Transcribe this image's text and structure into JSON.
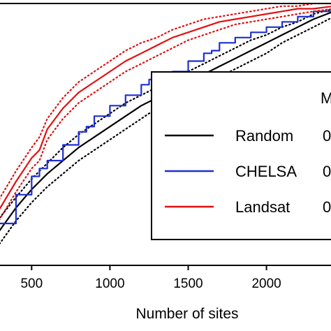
{
  "chart_data": {
    "type": "line",
    "xlabel": "Number of sites",
    "ylabel": "",
    "xlim": [
      280,
      2430
    ],
    "ylim": [
      0,
      1
    ],
    "x_ticks": [
      "500",
      "1000",
      "1500",
      "2000"
    ],
    "x_tick_values": [
      500,
      1000,
      1500,
      2000
    ],
    "legend": {
      "placement": "right",
      "title": "M",
      "value_prefix": "0"
    },
    "series": [
      {
        "name": "Random",
        "color": "#000000",
        "style": "solid",
        "x": [
          280,
          400,
          500,
          600,
          700,
          800,
          900,
          1000,
          1100,
          1200,
          1300,
          1400,
          1500,
          1600,
          1700,
          1800,
          1900,
          2000,
          2100,
          2200,
          2300,
          2430
        ],
        "values": [
          0.12,
          0.22,
          0.29,
          0.35,
          0.4,
          0.45,
          0.49,
          0.53,
          0.57,
          0.61,
          0.64,
          0.67,
          0.7,
          0.73,
          0.76,
          0.79,
          0.82,
          0.85,
          0.88,
          0.91,
          0.94,
          0.97
        ]
      },
      {
        "name": "Random upper",
        "color": "#000000",
        "style": "dotted",
        "x": [
          280,
          400,
          500,
          600,
          700,
          800,
          900,
          1000,
          1100,
          1200,
          1300,
          1400,
          1500,
          1600,
          1700,
          1800,
          1900,
          2000,
          2100,
          2200,
          2300,
          2430
        ],
        "values": [
          0.17,
          0.26,
          0.33,
          0.39,
          0.45,
          0.5,
          0.54,
          0.58,
          0.62,
          0.65,
          0.68,
          0.71,
          0.74,
          0.77,
          0.8,
          0.83,
          0.86,
          0.88,
          0.91,
          0.93,
          0.96,
          0.98
        ]
      },
      {
        "name": "Random lower",
        "color": "#000000",
        "style": "dotted",
        "x": [
          280,
          400,
          500,
          600,
          700,
          800,
          900,
          1000,
          1100,
          1200,
          1300,
          1400,
          1500,
          1600,
          1700,
          1800,
          1900,
          2000,
          2100,
          2200,
          2300,
          2430
        ],
        "values": [
          0.07,
          0.17,
          0.24,
          0.3,
          0.35,
          0.4,
          0.44,
          0.48,
          0.52,
          0.56,
          0.6,
          0.63,
          0.66,
          0.69,
          0.72,
          0.75,
          0.78,
          0.81,
          0.85,
          0.88,
          0.91,
          0.95
        ]
      },
      {
        "name": "CHELSA",
        "color": "#1f2fd0",
        "style": "solid",
        "x": [
          280,
          400,
          500,
          550,
          600,
          700,
          800,
          850,
          900,
          1000,
          1100,
          1200,
          1250,
          1300,
          1400,
          1500,
          1600,
          1650,
          1700,
          1800,
          1900,
          2000,
          2100,
          2200,
          2300,
          2430
        ],
        "values": [
          0.16,
          0.27,
          0.34,
          0.37,
          0.4,
          0.46,
          0.51,
          0.53,
          0.57,
          0.61,
          0.65,
          0.69,
          0.71,
          0.72,
          0.74,
          0.78,
          0.81,
          0.82,
          0.85,
          0.87,
          0.89,
          0.91,
          0.93,
          0.95,
          0.97,
          0.98
        ]
      },
      {
        "name": "Landsat",
        "color": "#e01010",
        "style": "solid",
        "x": [
          280,
          400,
          500,
          550,
          600,
          700,
          800,
          900,
          1000,
          1100,
          1200,
          1300,
          1400,
          1500,
          1600,
          1700,
          1800,
          1900,
          2000,
          2100,
          2200,
          2300,
          2430
        ],
        "values": [
          0.2,
          0.32,
          0.41,
          0.44,
          0.52,
          0.6,
          0.66,
          0.7,
          0.74,
          0.78,
          0.81,
          0.84,
          0.87,
          0.89,
          0.91,
          0.93,
          0.94,
          0.95,
          0.96,
          0.97,
          0.98,
          0.98,
          0.99
        ]
      },
      {
        "name": "Landsat upper",
        "color": "#e01010",
        "style": "dotted",
        "x": [
          280,
          400,
          500,
          550,
          600,
          700,
          800,
          900,
          1000,
          1100,
          1200,
          1300,
          1400,
          1500,
          1600,
          1700,
          1800,
          1900,
          2000,
          2100,
          2200,
          2300,
          2430
        ],
        "values": [
          0.24,
          0.36,
          0.45,
          0.49,
          0.56,
          0.64,
          0.7,
          0.74,
          0.78,
          0.82,
          0.85,
          0.87,
          0.9,
          0.92,
          0.94,
          0.95,
          0.96,
          0.97,
          0.98,
          0.99,
          0.99,
          1.0,
          1.0
        ]
      },
      {
        "name": "Landsat lower",
        "color": "#e01010",
        "style": "dotted",
        "x": [
          280,
          400,
          500,
          550,
          600,
          700,
          800,
          900,
          1000,
          1100,
          1200,
          1300,
          1400,
          1500,
          1600,
          1700,
          1800,
          1900,
          2000,
          2100,
          2200,
          2300,
          2430
        ],
        "values": [
          0.16,
          0.28,
          0.37,
          0.4,
          0.48,
          0.56,
          0.62,
          0.66,
          0.7,
          0.74,
          0.77,
          0.8,
          0.83,
          0.86,
          0.88,
          0.9,
          0.92,
          0.93,
          0.94,
          0.95,
          0.96,
          0.97,
          0.98
        ]
      }
    ]
  }
}
